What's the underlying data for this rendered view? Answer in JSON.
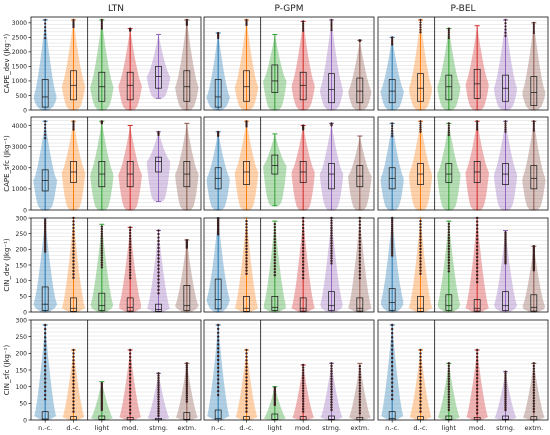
{
  "chart_data": {
    "type": "violin",
    "columns": [
      "LTN",
      "P-GPM",
      "P-BEL"
    ],
    "categories": [
      "n.-c.",
      "d.-c.",
      "light",
      "mod.",
      "strng.",
      "extm."
    ],
    "series_colors": [
      "#1f77b4",
      "#ff7f0e",
      "#2ca02c",
      "#d62728",
      "#9467bd",
      "#8c564b"
    ],
    "rows": [
      {
        "ylabel": "CAPE_dev (Jkg⁻¹)",
        "ylim": [
          0,
          3200
        ],
        "yticks": [
          0,
          500,
          1000,
          1500,
          2000,
          2500,
          3000
        ],
        "panels": [
          {
            "column": "LTN",
            "q1": [
              100,
              350,
              300,
              350,
              750,
              300
            ],
            "median": [
              450,
              850,
              800,
              850,
              1150,
              800
            ],
            "q3": [
              1050,
              1350,
              1300,
              1300,
              1500,
              1350
            ],
            "min": [
              0,
              0,
              0,
              0,
              400,
              0
            ],
            "max": [
              3100,
              3100,
              3100,
              2800,
              2600,
              3100
            ]
          },
          {
            "column": "P-GPM",
            "q1": [
              100,
              300,
              600,
              350,
              250,
              250
            ],
            "median": [
              450,
              800,
              1000,
              850,
              700,
              650
            ],
            "q3": [
              1050,
              1350,
              1550,
              1300,
              1250,
              1100
            ],
            "min": [
              0,
              0,
              0,
              0,
              0,
              0
            ],
            "max": [
              2650,
              3100,
              2600,
              3050,
              3100,
              2400
            ]
          },
          {
            "column": "P-BEL",
            "q1": [
              250,
              300,
              350,
              400,
              300,
              150
            ],
            "median": [
              650,
              750,
              800,
              900,
              750,
              600
            ],
            "q3": [
              1050,
              1250,
              1200,
              1400,
              1200,
              1150
            ],
            "min": [
              0,
              0,
              0,
              0,
              0,
              0
            ],
            "max": [
              2500,
              3100,
              2800,
              2900,
              3100,
              3000
            ]
          }
        ]
      },
      {
        "ylabel": "CAPE_sfc (Jkg⁻¹)",
        "ylim": [
          0,
          4400
        ],
        "yticks": [
          0,
          1000,
          2000,
          3000,
          4000
        ],
        "panels": [
          {
            "column": "LTN",
            "q1": [
              900,
              1300,
              1100,
              1100,
              1800,
              1100
            ],
            "median": [
              1400,
              1800,
              1700,
              1700,
              2300,
              1700
            ],
            "q3": [
              1900,
              2300,
              2300,
              2300,
              2500,
              2300
            ],
            "min": [
              0,
              0,
              0,
              0,
              400,
              0
            ],
            "max": [
              4200,
              4200,
              4200,
              4000,
              3700,
              4100
            ]
          },
          {
            "column": "P-GPM",
            "q1": [
              1000,
              1200,
              1700,
              1300,
              1000,
              1100
            ],
            "median": [
              1500,
              1800,
              2100,
              1800,
              1700,
              1600
            ],
            "q3": [
              2000,
              2300,
              2600,
              2300,
              2200,
              2100
            ],
            "min": [
              0,
              0,
              200,
              0,
              0,
              0
            ],
            "max": [
              3700,
              4200,
              3600,
              4000,
              4100,
              3500
            ]
          },
          {
            "column": "P-BEL",
            "q1": [
              1000,
              1200,
              1300,
              1300,
              1200,
              1000
            ],
            "median": [
              1500,
              1700,
              1700,
              1800,
              1700,
              1500
            ],
            "q3": [
              2000,
              2200,
              2200,
              2300,
              2200,
              2100
            ],
            "min": [
              0,
              0,
              0,
              0,
              0,
              0
            ],
            "max": [
              4100,
              4200,
              4100,
              4200,
              4200,
              4200
            ]
          }
        ]
      },
      {
        "ylabel": "CIN_dev (Jkg⁻¹)",
        "ylim": [
          0,
          300
        ],
        "yticks": [
          0,
          50,
          100,
          150,
          200,
          250,
          300
        ],
        "panels": [
          {
            "column": "LTN",
            "q1": [
              5,
              2,
              5,
              3,
              2,
              5
            ],
            "median": [
              25,
              12,
              20,
              15,
              8,
              20
            ],
            "q3": [
              80,
              45,
              60,
              45,
              25,
              85
            ],
            "min": [
              0,
              0,
              0,
              0,
              0,
              0
            ],
            "max": [
              300,
              300,
              280,
              270,
              260,
              230
            ]
          },
          {
            "column": "P-GPM",
            "q1": [
              10,
              2,
              5,
              3,
              5,
              3
            ],
            "median": [
              40,
              12,
              15,
              12,
              20,
              12
            ],
            "q3": [
              105,
              50,
              50,
              45,
              65,
              45
            ],
            "min": [
              0,
              0,
              0,
              0,
              0,
              0
            ],
            "max": [
              300,
              300,
              290,
              300,
              300,
              300
            ]
          },
          {
            "column": "P-BEL",
            "q1": [
              5,
              2,
              5,
              3,
              5,
              3
            ],
            "median": [
              30,
              12,
              20,
              12,
              20,
              15
            ],
            "q3": [
              75,
              50,
              55,
              40,
              65,
              55
            ],
            "min": [
              0,
              0,
              0,
              0,
              0,
              0
            ],
            "max": [
              300,
              300,
              290,
              300,
              260,
              210
            ]
          }
        ]
      },
      {
        "ylabel": "CIN_sfc (Jkg⁻¹)",
        "ylim": [
          0,
          300
        ],
        "yticks": [
          0,
          50,
          100,
          150,
          200,
          250,
          300
        ],
        "panels": [
          {
            "column": "LTN",
            "q1": [
              0,
              0,
              0,
              0,
              0,
              0
            ],
            "median": [
              3,
              1,
              2,
              1,
              1,
              2
            ],
            "q3": [
              25,
              10,
              12,
              8,
              5,
              22
            ],
            "min": [
              0,
              0,
              0,
              0,
              0,
              0
            ],
            "max": [
              285,
              210,
              115,
              210,
              140,
              170
            ]
          },
          {
            "column": "P-GPM",
            "q1": [
              0,
              0,
              0,
              0,
              0,
              0
            ],
            "median": [
              5,
              1,
              2,
              1,
              2,
              1
            ],
            "q3": [
              30,
              10,
              18,
              10,
              12,
              8
            ],
            "min": [
              0,
              0,
              0,
              0,
              0,
              0
            ],
            "max": [
              285,
              210,
              100,
              165,
              170,
              170
            ]
          },
          {
            "column": "P-BEL",
            "q1": [
              0,
              0,
              0,
              0,
              0,
              0
            ],
            "median": [
              5,
              1,
              2,
              1,
              2,
              1
            ],
            "q3": [
              25,
              10,
              12,
              8,
              12,
              10
            ],
            "min": [
              0,
              0,
              0,
              0,
              0,
              0
            ],
            "max": [
              285,
              210,
              170,
              210,
              145,
              170
            ]
          }
        ]
      }
    ],
    "grid": true,
    "divider_after_category": 1
  }
}
